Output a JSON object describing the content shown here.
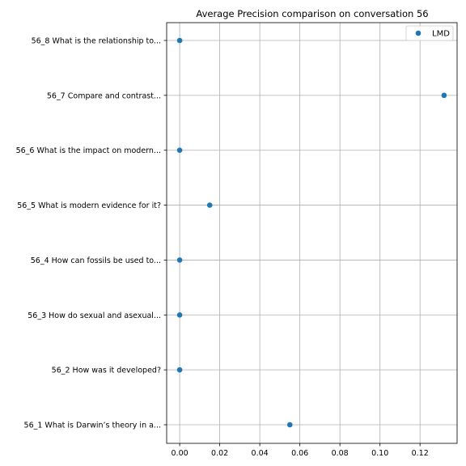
{
  "chart_data": {
    "type": "scatter",
    "title": "Average Precision comparison on conversation 56",
    "xlabel": "",
    "ylabel": "",
    "xlim": [
      -0.0065,
      0.1385
    ],
    "xticks": [
      0.0,
      0.02,
      0.04,
      0.06,
      0.08,
      0.1,
      0.12
    ],
    "xtick_labels": [
      "0.00",
      "0.02",
      "0.04",
      "0.06",
      "0.08",
      "0.10",
      "0.12"
    ],
    "categories": [
      "56_1 What is Darwin’s theory in a...",
      "56_2 How was it developed?",
      "56_3 How do sexual and asexual...",
      "56_4 How can fossils be used to...",
      "56_5 What is modern evidence for it?",
      "56_6 What is the impact on modern...",
      "56_7 Compare and contrast...",
      "56_8 What is the relationship to..."
    ],
    "series": [
      {
        "name": "LMD",
        "color": "#1f77b4",
        "values": [
          0.055,
          0.0,
          0.0,
          0.0,
          0.015,
          0.0,
          0.132,
          0.0
        ]
      }
    ],
    "grid": true,
    "legend_position": "top-right"
  }
}
